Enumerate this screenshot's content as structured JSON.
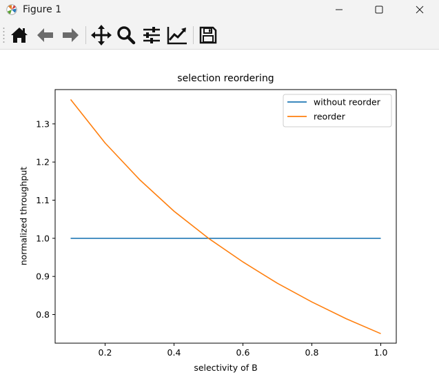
{
  "window": {
    "title": "Figure 1",
    "controls": [
      "minimize",
      "maximize",
      "close"
    ]
  },
  "toolbar": {
    "buttons": [
      {
        "name": "home",
        "icon": "home-icon"
      },
      {
        "name": "back",
        "icon": "arrow-left-icon"
      },
      {
        "name": "forward",
        "icon": "arrow-right-icon"
      },
      {
        "name": "pan",
        "icon": "move-icon"
      },
      {
        "name": "zoom",
        "icon": "magnifier-icon"
      },
      {
        "name": "subplots",
        "icon": "sliders-icon"
      },
      {
        "name": "edit-axis",
        "icon": "line-chart-icon"
      },
      {
        "name": "save",
        "icon": "floppy-disk-icon"
      }
    ]
  },
  "chart_data": {
    "type": "line",
    "title": "selection reordering",
    "xlabel": "selectivity of B",
    "ylabel": "normalized throughput",
    "xlim": [
      0.055,
      1.045
    ],
    "ylim": [
      0.725,
      1.39
    ],
    "xticks": [
      "0.2",
      "0.4",
      "0.6",
      "0.8",
      "1.0"
    ],
    "xtick_values": [
      0.2,
      0.4,
      0.6,
      0.8,
      1.0
    ],
    "yticks": [
      "0.8",
      "0.9",
      "1.0",
      "1.1",
      "1.2",
      "1.3"
    ],
    "ytick_values": [
      0.8,
      0.9,
      1.0,
      1.1,
      1.2,
      1.3
    ],
    "legend_position": "top-right",
    "grid": false,
    "x": [
      0.1,
      0.2,
      0.3,
      0.4,
      0.5,
      0.6,
      0.7,
      0.8,
      0.9,
      1.0
    ],
    "series": [
      {
        "name": "without reorder",
        "color": "#1f77b4",
        "values": [
          1.0,
          1.0,
          1.0,
          1.0,
          1.0,
          1.0,
          1.0,
          1.0,
          1.0,
          1.0
        ]
      },
      {
        "name": "reorder",
        "color": "#ff7f0e",
        "values": [
          1.364,
          1.25,
          1.154,
          1.071,
          1.0,
          0.938,
          0.882,
          0.833,
          0.789,
          0.75
        ]
      }
    ]
  }
}
